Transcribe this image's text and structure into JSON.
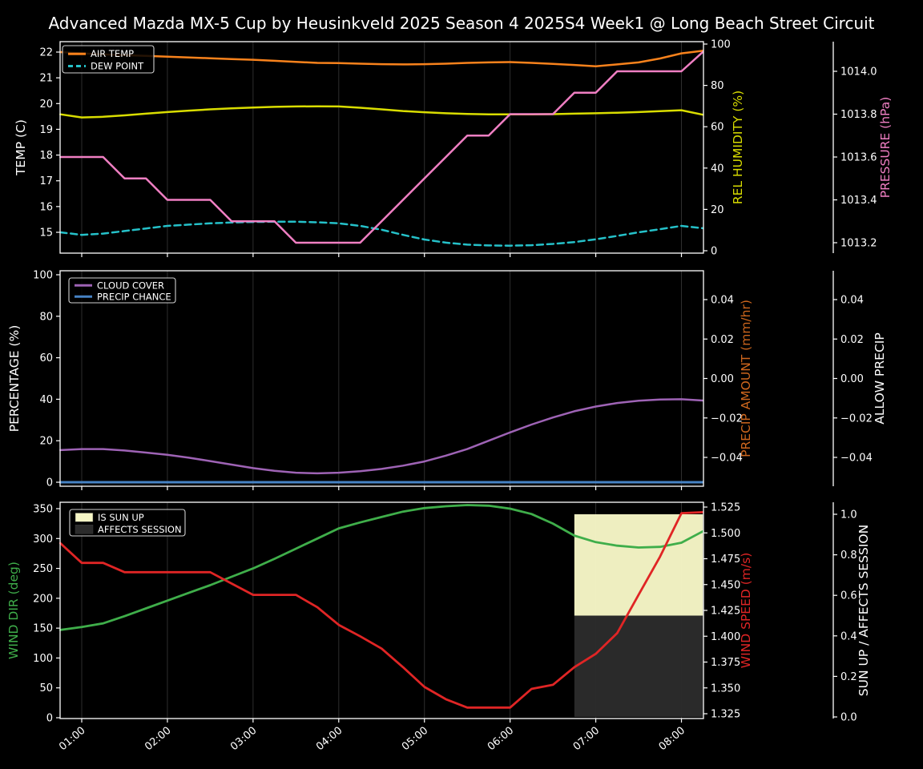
{
  "title": "Advanced Mazda MX-5 Cup by Heusinkveld 2025 Season 4 2025S4 Week1 @ Long Beach Street Circuit",
  "colors": {
    "background": "#000000",
    "text": "#ffffff",
    "grid": "#2e2e2e",
    "spine": "#ffffff",
    "air_temp": "#f8821c",
    "dew_point": "#25c1c9",
    "rel_humidity": "#d9dd00",
    "pressure": "#f07fc3",
    "cloud_cover": "#9e63b5",
    "precip_chance": "#4682c4",
    "precip_amount": "#cd661d",
    "wind_dir": "#3fae4a",
    "wind_speed": "#e02525",
    "sun_up_fill": "#f6f6c6",
    "affects_session_fill": "#2b2b2b",
    "legend_border": "#d0d0d0"
  },
  "chart_data": {
    "type": "line",
    "x_axis_format": "HH:MM",
    "x_hours": [
      0.75,
      1,
      1.25,
      1.5,
      1.75,
      2,
      2.25,
      2.5,
      2.75,
      3,
      3.25,
      3.5,
      3.75,
      4,
      4.25,
      4.5,
      4.75,
      5,
      5.25,
      5.5,
      5.75,
      6,
      6.25,
      6.5,
      6.75,
      7,
      7.25,
      7.5,
      7.75,
      8,
      8.25
    ],
    "x_tick_hours": [
      1,
      2,
      3,
      4,
      5,
      6,
      7,
      8
    ],
    "x_tick_labels": [
      "01:00",
      "02:00",
      "03:00",
      "04:00",
      "05:00",
      "06:00",
      "07:00",
      "08:00"
    ],
    "panels": [
      {
        "id": "temperature",
        "legend": [
          {
            "label": "AIR TEMP",
            "color": "#f8821c",
            "dash": false,
            "type": "line"
          },
          {
            "label": "DEW POINT",
            "color": "#25c1c9",
            "dash": true,
            "type": "line"
          }
        ],
        "axes": {
          "left": {
            "title": "TEMP (C)",
            "color": "#ffffff",
            "ticks": [
              15,
              16,
              17,
              18,
              19,
              20,
              21,
              22
            ],
            "labels": [
              "15",
              "16",
              "17",
              "18",
              "19",
              "20",
              "21",
              "22"
            ],
            "ylim": [
              14.2,
              22.4
            ]
          },
          "right1": {
            "title": "REL HUMIDITY (%)",
            "color": "#d9dd00",
            "ticks": [
              0,
              20,
              40,
              60,
              80,
              100
            ],
            "labels": [
              "0",
              "20",
              "40",
              "60",
              "80",
              "100"
            ],
            "ylim": [
              -1.2,
              102.3
            ]
          },
          "right2": {
            "title": "PRESSURE (hPa)",
            "color": "#f07fc3",
            "ticks": [
              1013.2,
              1013.4,
              1013.6,
              1013.8,
              1014.0
            ],
            "labels": [
              "1013.2",
              "1013.4",
              "1013.6",
              "1013.8",
              "1014.0"
            ],
            "ylim": [
              1013.15,
              1014.14
            ]
          }
        },
        "series": [
          {
            "name": "AIR TEMP",
            "axis": "left",
            "color": "#f8821c",
            "dash": false,
            "width": 2.5,
            "values": [
              22.0,
              21.95,
              21.91,
              21.88,
              21.85,
              21.82,
              21.79,
              21.76,
              21.73,
              21.7,
              21.66,
              21.62,
              21.58,
              21.57,
              21.55,
              21.53,
              21.52,
              21.53,
              21.55,
              21.58,
              21.6,
              21.61,
              21.58,
              21.54,
              21.5,
              21.45,
              21.52,
              21.6,
              21.75,
              21.95,
              22.05
            ]
          },
          {
            "name": "DEW POINT",
            "axis": "left",
            "color": "#25c1c9",
            "dash": true,
            "width": 2.5,
            "values": [
              15.0,
              14.9,
              14.95,
              15.05,
              15.15,
              15.25,
              15.3,
              15.35,
              15.38,
              15.4,
              15.41,
              15.41,
              15.39,
              15.35,
              15.25,
              15.1,
              14.9,
              14.72,
              14.6,
              14.52,
              14.49,
              14.48,
              14.5,
              14.55,
              14.62,
              14.73,
              14.86,
              15.0,
              15.12,
              15.25,
              15.16
            ]
          },
          {
            "name": "REL HUMIDITY",
            "axis": "right1",
            "color": "#d9dd00",
            "dash": false,
            "width": 2.5,
            "values": [
              66,
              64.5,
              64.8,
              65.5,
              66.3,
              67.1,
              67.8,
              68.4,
              68.9,
              69.3,
              69.6,
              69.8,
              69.9,
              69.8,
              69.2,
              68.4,
              67.6,
              67.0,
              66.5,
              66.2,
              66.0,
              66.0,
              66.0,
              66.1,
              66.3,
              66.5,
              66.8,
              67.1,
              67.5,
              68.0,
              65.8
            ]
          },
          {
            "name": "PRESSURE",
            "axis": "right2",
            "color": "#f07fc3",
            "dash": false,
            "width": 2.5,
            "values": [
              1013.6,
              1013.6,
              1013.6,
              1013.5,
              1013.5,
              1013.4,
              1013.4,
              1013.4,
              1013.3,
              1013.3,
              1013.3,
              1013.2,
              1013.2,
              1013.2,
              1013.2,
              1013.3,
              1013.4,
              1013.5,
              1013.6,
              1013.7,
              1013.7,
              1013.8,
              1013.8,
              1013.8,
              1013.9,
              1013.9,
              1014.0,
              1014.0,
              1014.0,
              1014.0,
              1014.09
            ]
          }
        ]
      },
      {
        "id": "cloud-precip",
        "legend": [
          {
            "label": "CLOUD COVER",
            "color": "#9e63b5",
            "dash": false,
            "type": "line"
          },
          {
            "label": "PRECIP CHANCE",
            "color": "#4682c4",
            "dash": false,
            "type": "line"
          }
        ],
        "axes": {
          "left": {
            "title": "PERCENTAGE (%)",
            "color": "#ffffff",
            "ticks": [
              0,
              20,
              40,
              60,
              80,
              100
            ],
            "labels": [
              "0",
              "20",
              "40",
              "60",
              "80",
              "100"
            ],
            "ylim": [
              -2,
              102
            ]
          },
          "right1": {
            "title": "PRECIP AMOUNT (mm/hr)",
            "color": "#cd661d",
            "ticks": [
              -0.04,
              -0.02,
              0,
              0.02,
              0.04
            ],
            "labels": [
              "−0.04",
              "−0.02",
              "0.00",
              "0.02",
              "0.04"
            ],
            "ylim": [
              -0.054,
              0.055
            ]
          },
          "right2": {
            "title": "ALLOW PRECIP",
            "color": "#ffffff",
            "ticks": [
              -0.04,
              -0.02,
              0,
              0.02,
              0.04
            ],
            "labels": [
              "−0.04",
              "−0.02",
              "0.00",
              "0.02",
              "0.04"
            ],
            "ylim": [
              -0.054,
              0.055
            ]
          }
        },
        "series": [
          {
            "name": "CLOUD COVER",
            "axis": "left",
            "color": "#9e63b5",
            "dash": false,
            "width": 2.5,
            "values": [
              15.5,
              16.0,
              16.0,
              15.3,
              14.3,
              13.2,
              11.8,
              10.2,
              8.5,
              6.8,
              5.5,
              4.6,
              4.3,
              4.6,
              5.3,
              6.4,
              8.0,
              10.0,
              12.8,
              16.0,
              20.0,
              24.0,
              27.8,
              31.2,
              34.2,
              36.5,
              38.2,
              39.3,
              39.9,
              40.0,
              39.4
            ]
          },
          {
            "name": "PRECIP CHANCE",
            "axis": "left",
            "color": "#4682c4",
            "dash": false,
            "width": 3,
            "values": [
              0,
              0,
              0,
              0,
              0,
              0,
              0,
              0,
              0,
              0,
              0,
              0,
              0,
              0,
              0,
              0,
              0,
              0,
              0,
              0,
              0,
              0,
              0,
              0,
              0,
              0,
              0,
              0,
              0,
              0,
              0
            ]
          }
        ]
      },
      {
        "id": "wind-sun",
        "legend": [
          {
            "label": "IS SUN UP",
            "color": "#f6f6c6",
            "type": "patch"
          },
          {
            "label": "AFFECTS SESSION",
            "color": "#2b2b2b",
            "type": "patch"
          }
        ],
        "axes": {
          "left": {
            "title": "WIND DIR (deg)",
            "color": "#3fae4a",
            "ticks": [
              0,
              50,
              100,
              150,
              200,
              250,
              300,
              350
            ],
            "labels": [
              "0",
              "50",
              "100",
              "150",
              "200",
              "250",
              "300",
              "350"
            ],
            "ylim": [
              0,
              359
            ]
          },
          "right1": {
            "title": "WIND SPEED (m/s)",
            "color": "#e02525",
            "ticks": [
              1.325,
              1.35,
              1.375,
              1.4,
              1.425,
              1.45,
              1.475,
              1.5,
              1.525
            ],
            "labels": [
              "1.325",
              "1.350",
              "1.375",
              "1.400",
              "1.425",
              "1.450",
              "1.475",
              "1.500",
              "1.525"
            ],
            "ylim": [
              1.3205,
              1.5295
            ]
          },
          "right2": {
            "title": "SUN UP / AFFECTS SESSION",
            "color": "#ffffff",
            "ticks": [
              0,
              0.2,
              0.4,
              0.6,
              0.8,
              1.0
            ],
            "labels": [
              "0.0",
              "0.2",
              "0.4",
              "0.6",
              "0.8",
              "1.0"
            ],
            "ylim": [
              -0.01,
              1.05
            ]
          }
        },
        "regions": [
          {
            "name": "IS SUN UP",
            "axis": "right2",
            "color": "#f6f6c6",
            "opacity": 0.97,
            "x_from": 6.75,
            "x_to": 8.25,
            "v_from": 0.5,
            "v_to": 1.0
          },
          {
            "name": "AFFECTS SESSION",
            "axis": "right2",
            "color": "#2b2b2b",
            "opacity": 0.97,
            "x_from": 6.75,
            "x_to": 8.25,
            "v_from": 0.0,
            "v_to": 0.5
          }
        ],
        "series": [
          {
            "name": "WIND DIR",
            "axis": "left",
            "color": "#3fae4a",
            "dash": false,
            "width": 2.8,
            "values": [
              147,
              152,
              158,
              170,
              183,
              196,
              209,
              222,
              236,
              250,
              266,
              283,
              300,
              317,
              327,
              336,
              345,
              351,
              354,
              356,
              355,
              350,
              341,
              325,
              305,
              294,
              288,
              285,
              286,
              293,
              312
            ]
          },
          {
            "name": "WIND SPEED",
            "axis": "right1",
            "color": "#e02525",
            "dash": false,
            "width": 2.8,
            "values": [
              1.49,
              1.471,
              1.471,
              1.462,
              1.462,
              1.462,
              1.462,
              1.462,
              1.451,
              1.44,
              1.44,
              1.44,
              1.428,
              1.411,
              1.4,
              1.388,
              1.37,
              1.351,
              1.339,
              1.331,
              1.331,
              1.331,
              1.349,
              1.353,
              1.37,
              1.383,
              1.403,
              1.44,
              1.477,
              1.519,
              1.52
            ]
          },
          {
            "name": "SUN UP",
            "axis": "right2",
            "color": "#f6f6c6",
            "hidden": true,
            "width": 0,
            "values": [
              0,
              0,
              0,
              0,
              0,
              0,
              0,
              0,
              0,
              0,
              0,
              0,
              0,
              0,
              0,
              0,
              0,
              0,
              0,
              0,
              0,
              0,
              0,
              0,
              1,
              1,
              1,
              1,
              1,
              1,
              1
            ]
          }
        ]
      }
    ]
  }
}
